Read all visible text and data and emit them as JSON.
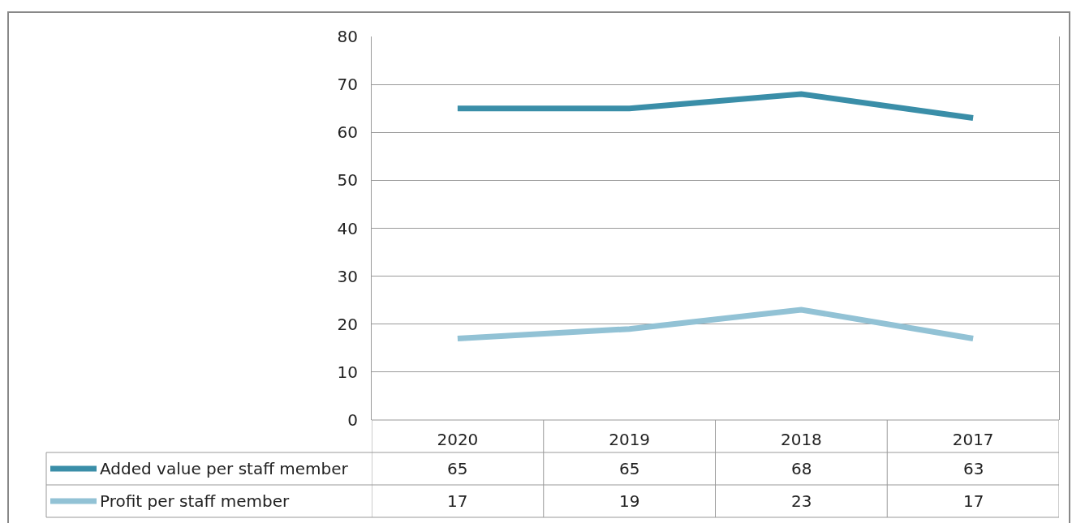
{
  "chart_data": {
    "type": "line",
    "categories": [
      "2020",
      "2019",
      "2018",
      "2017"
    ],
    "series": [
      {
        "name": "Added value per staff member",
        "color": "#3a8ea8",
        "values": [
          65,
          65,
          68,
          63
        ]
      },
      {
        "name": "Profit per staff member",
        "color": "#92c2d5",
        "values": [
          17,
          19,
          23,
          17
        ]
      }
    ],
    "ylim": [
      0,
      80
    ],
    "yticks": [
      0,
      10,
      20,
      30,
      40,
      50,
      60,
      70,
      80
    ],
    "grid": "y",
    "legend": "bottom",
    "data_labels": true,
    "marker": "none",
    "line_style": "solid"
  }
}
